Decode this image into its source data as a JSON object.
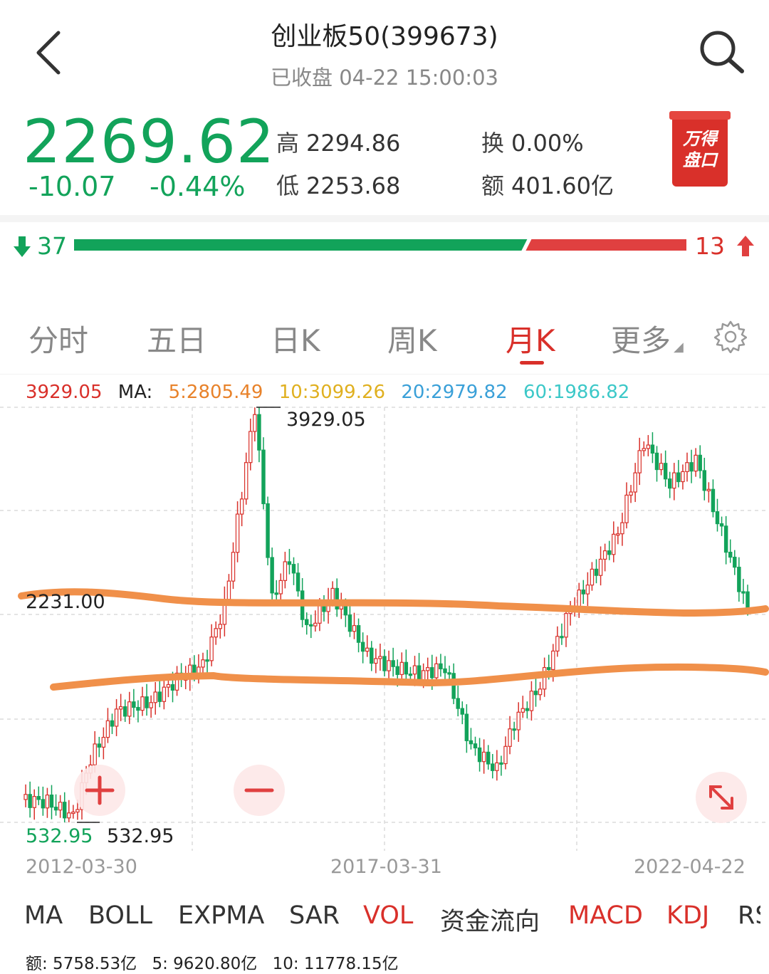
{
  "header": {
    "title": "创业板50(399673)",
    "status": "已收盘 04-22 15:00:03"
  },
  "quote": {
    "price": "2269.62",
    "change": "-10.07",
    "change_pct": "-0.44%",
    "high_label": "高",
    "high": "2294.86",
    "low_label": "低",
    "low": "2253.68",
    "turnover_label": "换",
    "turnover": "0.00%",
    "amount_label": "额",
    "amount": "401.60亿",
    "price_color": "#12a35a"
  },
  "badge": {
    "line1": "万得",
    "line2": "盘口"
  },
  "breadth": {
    "down": "37",
    "up": "13",
    "down_fraction": 0.74,
    "down_color": "#12a35a",
    "up_color": "#e04040"
  },
  "tabs": [
    {
      "label": "分时",
      "active": false
    },
    {
      "label": "五日",
      "active": false
    },
    {
      "label": "日K",
      "active": false
    },
    {
      "label": "周K",
      "active": false
    },
    {
      "label": "月K",
      "active": true
    },
    {
      "label": "更多",
      "active": false
    }
  ],
  "ma_legend": {
    "last": "3929.05",
    "ma_label": "MA:",
    "ma5": "5:2805.49",
    "ma10": "10:3099.26",
    "ma20": "20:2979.82",
    "ma60": "60:1986.82",
    "colors": {
      "last": "#d9302a",
      "ma5": "#e8822a",
      "ma10": "#e0b020",
      "ma20": "#3aa0d8",
      "ma60": "#3cc8c8"
    }
  },
  "chart_data": {
    "type": "candlestick",
    "x_labels": [
      "2012-03-30",
      "2017-03-31",
      "2022-04-22"
    ],
    "y_label_mid": "2231.00",
    "max_label": "3929.05",
    "min_label_left": "532.95",
    "min_label": "532.95",
    "ylim": [
      532.95,
      3929.05
    ],
    "grid": true,
    "up_color": "#d9302a",
    "down_color": "#12a35a"
  },
  "indicators": [
    {
      "label": "MA",
      "active": false
    },
    {
      "label": "BOLL",
      "active": false
    },
    {
      "label": "EXPMA",
      "active": false
    },
    {
      "label": "SAR",
      "active": false
    },
    {
      "label": "VOL",
      "active": true
    },
    {
      "label": "资金流向",
      "active": false
    },
    {
      "label": "MACD",
      "active": true
    },
    {
      "label": "KDJ",
      "active": true
    },
    {
      "label": "RS",
      "active": false
    }
  ],
  "volume_line": {
    "amount": "额: 5758.53亿",
    "v5": "5: 9620.80亿",
    "v10": "10: 11778.15亿"
  },
  "icons": [
    "back-arrow-icon",
    "search-icon",
    "down-arrow-icon",
    "up-arrow-icon",
    "gear-icon",
    "zoom-in-icon",
    "zoom-out-icon",
    "expand-icon"
  ]
}
